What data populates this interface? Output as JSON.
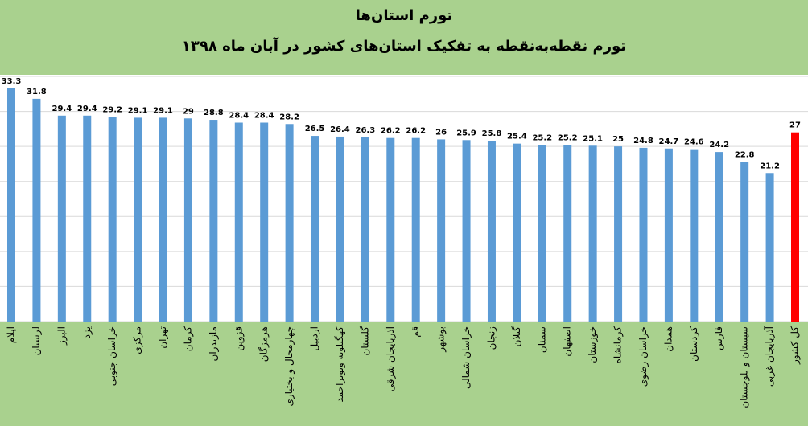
{
  "chart_data": {
    "type": "bar",
    "title": "تورم استان‌ها",
    "subtitle": "تورم نقطه‌به‌نقطه به تفکیک استان‌های کشور در آبان ماه ۱۳۹۸",
    "categories": [
      "ایلام",
      "لرستان",
      "البرز",
      "یزد",
      "خراسان جنوبی",
      "مرکزی",
      "تهران",
      "کرمان",
      "مازندران",
      "قزوین",
      "هرمزگان",
      "چهارمحال و بختیاری",
      "اردبیل",
      "کهگیلویه وبویراحمد",
      "گلستان",
      "آذربایجان شرقی",
      "قم",
      "بوشهر",
      "خراسان شمالی",
      "زنجان",
      "گیلان",
      "سمنان",
      "اصفهان",
      "خوزستان",
      "کرمانشاه",
      "خراسان رضوی",
      "همدان",
      "کردستان",
      "فارس",
      "سیستان و بلوچستان",
      "آذربایجان غربی",
      "کل کشور"
    ],
    "values": [
      33.3,
      31.8,
      29.4,
      29.4,
      29.2,
      29.1,
      29.1,
      29,
      28.8,
      28.4,
      28.4,
      28.2,
      26.5,
      26.4,
      26.3,
      26.2,
      26.2,
      26,
      25.9,
      25.8,
      25.4,
      25.2,
      25.2,
      25.1,
      25,
      24.8,
      24.7,
      24.6,
      24.2,
      22.8,
      21.2,
      27
    ],
    "colors": [
      "#5b9bd5",
      "#5b9bd5",
      "#5b9bd5",
      "#5b9bd5",
      "#5b9bd5",
      "#5b9bd5",
      "#5b9bd5",
      "#5b9bd5",
      "#5b9bd5",
      "#5b9bd5",
      "#5b9bd5",
      "#5b9bd5",
      "#5b9bd5",
      "#5b9bd5",
      "#5b9bd5",
      "#5b9bd5",
      "#5b9bd5",
      "#5b9bd5",
      "#5b9bd5",
      "#5b9bd5",
      "#5b9bd5",
      "#5b9bd5",
      "#5b9bd5",
      "#5b9bd5",
      "#5b9bd5",
      "#5b9bd5",
      "#5b9bd5",
      "#5b9bd5",
      "#5b9bd5",
      "#5b9bd5",
      "#5b9bd5",
      "#ff0000"
    ],
    "ylim": [
      0,
      35
    ],
    "yticks": [
      0,
      5,
      10,
      15,
      20,
      25,
      30,
      35
    ],
    "grid": true
  }
}
